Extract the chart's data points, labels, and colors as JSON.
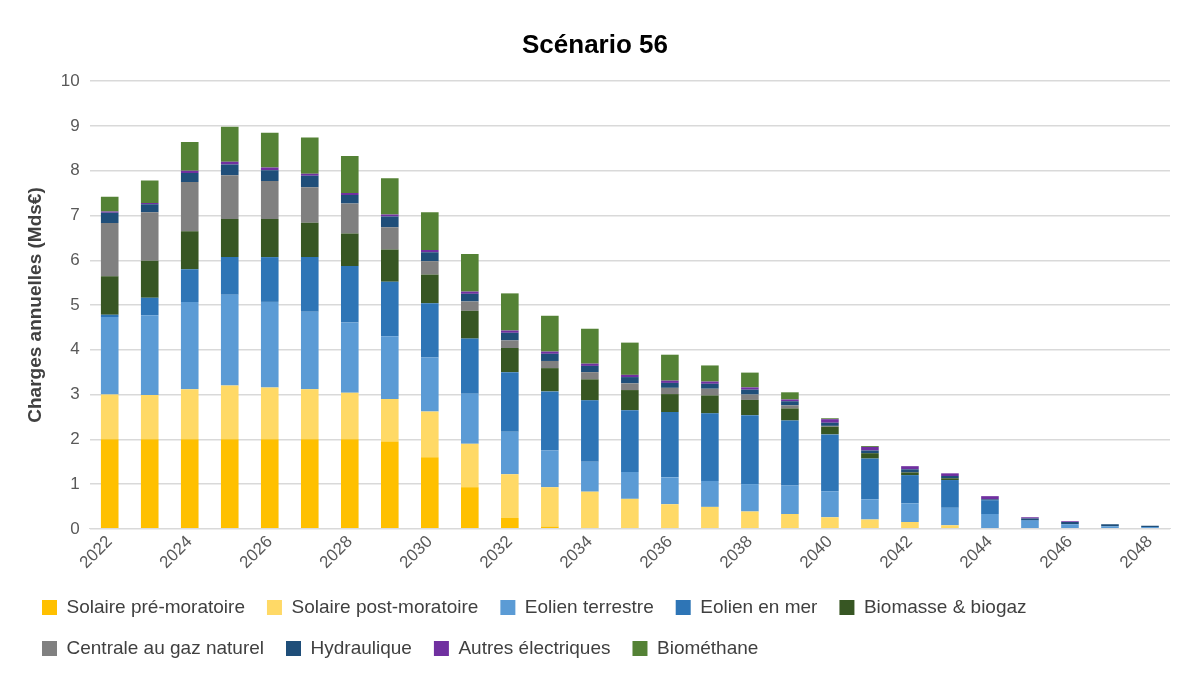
{
  "chart_data": {
    "type": "bar",
    "title": "Scénario 56",
    "ylabel": "Charges annuelles (Mds€)",
    "stacked": true,
    "grid": "y",
    "legend": "bottom",
    "categories": [
      "2022",
      null,
      "2024",
      null,
      "2026",
      null,
      "2028",
      null,
      "2030",
      null,
      "2032",
      null,
      "2034",
      null,
      "2036",
      null,
      "2038",
      null,
      "2040",
      null,
      "2042",
      null,
      "2044",
      null,
      "2046",
      null,
      "2048"
    ],
    "ylim": [
      0,
      10
    ],
    "yticks": [
      0,
      1,
      2,
      3,
      4,
      5,
      6,
      7,
      8,
      9,
      10
    ],
    "series": [
      {
        "name": "Solaire pré-moratoire",
        "color": "#ffc000",
        "values": [
          2.0,
          2.0,
          2.0,
          2.0,
          2.0,
          2.0,
          2.0,
          1.95,
          1.6,
          0.93,
          0.24,
          0.05,
          0,
          0,
          0,
          0,
          0,
          0,
          0,
          0,
          0,
          0,
          0,
          0,
          0,
          0,
          0
        ]
      },
      {
        "name": "Solaire post-moratoire",
        "color": "#ffd966",
        "values": [
          1.0,
          0.99,
          1.12,
          1.2,
          1.16,
          1.12,
          1.04,
          0.95,
          1.02,
          0.97,
          0.98,
          0.88,
          0.83,
          0.67,
          0.55,
          0.49,
          0.39,
          0.33,
          0.26,
          0.21,
          0.15,
          0.08,
          0,
          0,
          0,
          0,
          0
        ]
      },
      {
        "name": "Eolien terrestre",
        "color": "#5b9bd5",
        "values": [
          1.73,
          1.78,
          1.95,
          2.03,
          1.91,
          1.73,
          1.57,
          1.4,
          1.21,
          1.12,
          0.95,
          0.82,
          0.67,
          0.6,
          0.6,
          0.58,
          0.61,
          0.64,
          0.58,
          0.45,
          0.42,
          0.39,
          0.33,
          0.18,
          0.1,
          0.06,
          0.04
        ]
      },
      {
        "name": "Eolien en mer",
        "color": "#2e75b6",
        "values": [
          0.05,
          0.39,
          0.73,
          0.84,
          1.0,
          1.22,
          1.26,
          1.22,
          1.21,
          1.23,
          1.33,
          1.32,
          1.37,
          1.38,
          1.46,
          1.51,
          1.54,
          1.45,
          1.27,
          0.91,
          0.63,
          0.62,
          0.31,
          0.02,
          0,
          0,
          0
        ]
      },
      {
        "name": "Biomasse & biogaz",
        "color": "#375623",
        "values": [
          0.86,
          0.83,
          0.85,
          0.85,
          0.85,
          0.77,
          0.73,
          0.72,
          0.64,
          0.62,
          0.54,
          0.52,
          0.47,
          0.45,
          0.4,
          0.4,
          0.34,
          0.27,
          0.17,
          0.12,
          0.06,
          0.04,
          0,
          0,
          0,
          0,
          0
        ]
      },
      {
        "name": "Centrale au gaz naturel",
        "color": "#808080",
        "values": [
          1.19,
          1.08,
          1.1,
          0.98,
          0.85,
          0.79,
          0.67,
          0.5,
          0.3,
          0.21,
          0.17,
          0.16,
          0.16,
          0.15,
          0.14,
          0.15,
          0.12,
          0.07,
          0.02,
          0,
          0,
          0,
          0,
          0,
          0,
          0,
          0
        ]
      },
      {
        "name": "Hydraulique",
        "color": "#1f4e79",
        "values": [
          0.23,
          0.18,
          0.2,
          0.24,
          0.24,
          0.26,
          0.19,
          0.24,
          0.2,
          0.17,
          0.17,
          0.16,
          0.14,
          0.14,
          0.11,
          0.11,
          0.11,
          0.09,
          0.07,
          0.06,
          0.07,
          0.05,
          0.02,
          0.03,
          0.05,
          0.04,
          0.03
        ]
      },
      {
        "name": "Autres électriques",
        "color": "#7030a0",
        "values": [
          0.03,
          0.03,
          0.05,
          0.06,
          0.06,
          0.04,
          0.04,
          0.04,
          0.05,
          0.05,
          0.05,
          0.05,
          0.05,
          0.05,
          0.05,
          0.05,
          0.05,
          0.04,
          0.08,
          0.08,
          0.07,
          0.06,
          0.07,
          0.03,
          0.02,
          0,
          0
        ]
      },
      {
        "name": "Biométhane",
        "color": "#548235",
        "values": [
          0.33,
          0.5,
          0.64,
          0.78,
          0.78,
          0.81,
          0.83,
          0.81,
          0.84,
          0.84,
          0.83,
          0.8,
          0.78,
          0.72,
          0.58,
          0.36,
          0.33,
          0.16,
          0.02,
          0.02,
          0,
          0,
          0,
          0,
          0,
          0,
          0
        ]
      }
    ]
  }
}
